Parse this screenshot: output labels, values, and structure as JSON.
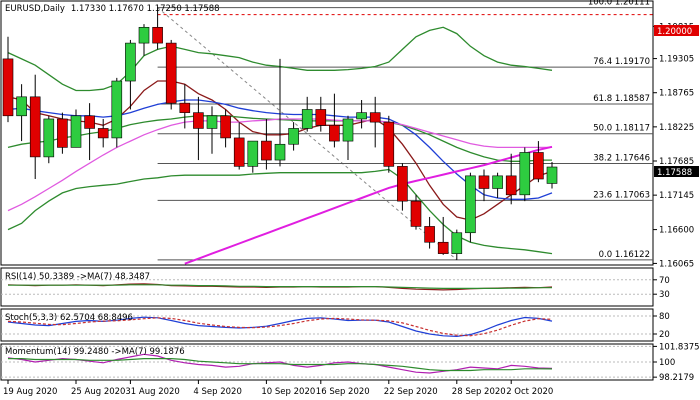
{
  "chart_data": [
    {
      "type": "candlestick",
      "title": "EURUSD,Daily",
      "ohlc_text": "1.17330 1.17670 1.17250 1.17588",
      "ylim": [
        1.1604,
        1.202
      ],
      "x_ticks": [
        "19 Aug 2020",
        "25 Aug 2020",
        "31 Aug 2020",
        "4 Sep 2020",
        "10 Sep 2020",
        "16 Sep 2020",
        "22 Sep 2020",
        "28 Sep 2020",
        "2 Oct 2020"
      ],
      "y_ticks": [
        "1.19815",
        "1.19305",
        "1.18765",
        "1.18225",
        "1.17685",
        "1.17145",
        "1.16600",
        "1.16065"
      ],
      "levels": [
        {
          "label": "1.20000",
          "value": 1.2,
          "style": "red-dashed",
          "tag": true
        },
        {
          "label": "100.0 1.20111",
          "value": 1.20111,
          "style": "fib"
        },
        {
          "label": "76.4 1.19170",
          "value": 1.1917,
          "style": "fib"
        },
        {
          "label": "61.8 1.18587",
          "value": 1.18587,
          "style": "fib"
        },
        {
          "label": "50.0 1.18117",
          "value": 1.18117,
          "style": "fib"
        },
        {
          "label": "38.2 1.17646",
          "value": 1.17646,
          "style": "fib"
        },
        {
          "label": "23.6 1.17063",
          "value": 1.17063,
          "style": "fib"
        },
        {
          "label": "0.0 1.16122",
          "value": 1.16122,
          "style": "fib"
        }
      ],
      "current_price": "1.17588",
      "candles": [
        {
          "o": 1.193,
          "h": 1.1965,
          "l": 1.183,
          "c": 1.184
        },
        {
          "o": 1.184,
          "h": 1.189,
          "l": 1.18,
          "c": 1.187
        },
        {
          "o": 1.187,
          "h": 1.1905,
          "l": 1.174,
          "c": 1.1775
        },
        {
          "o": 1.1775,
          "h": 1.184,
          "l": 1.1765,
          "c": 1.1835
        },
        {
          "o": 1.1835,
          "h": 1.1845,
          "l": 1.178,
          "c": 1.179
        },
        {
          "o": 1.179,
          "h": 1.185,
          "l": 1.179,
          "c": 1.184
        },
        {
          "o": 1.184,
          "h": 1.186,
          "l": 1.177,
          "c": 1.182
        },
        {
          "o": 1.182,
          "h": 1.1835,
          "l": 1.179,
          "c": 1.1805
        },
        {
          "o": 1.1805,
          "h": 1.19,
          "l": 1.179,
          "c": 1.1895
        },
        {
          "o": 1.1895,
          "h": 1.196,
          "l": 1.185,
          "c": 1.1955
        },
        {
          "o": 1.1955,
          "h": 1.1985,
          "l": 1.1935,
          "c": 1.198
        },
        {
          "o": 1.198,
          "h": 1.2012,
          "l": 1.1945,
          "c": 1.1955
        },
        {
          "o": 1.1955,
          "h": 1.196,
          "l": 1.185,
          "c": 1.186
        },
        {
          "o": 1.186,
          "h": 1.189,
          "l": 1.182,
          "c": 1.1845
        },
        {
          "o": 1.1845,
          "h": 1.187,
          "l": 1.177,
          "c": 1.182
        },
        {
          "o": 1.182,
          "h": 1.1855,
          "l": 1.178,
          "c": 1.184
        },
        {
          "o": 1.184,
          "h": 1.185,
          "l": 1.179,
          "c": 1.1805
        },
        {
          "o": 1.1805,
          "h": 1.183,
          "l": 1.1755,
          "c": 1.176
        },
        {
          "o": 1.176,
          "h": 1.18,
          "l": 1.175,
          "c": 1.18
        },
        {
          "o": 1.18,
          "h": 1.1835,
          "l": 1.1755,
          "c": 1.177
        },
        {
          "o": 1.177,
          "h": 1.193,
          "l": 1.176,
          "c": 1.1795
        },
        {
          "o": 1.1795,
          "h": 1.183,
          "l": 1.1785,
          "c": 1.182
        },
        {
          "o": 1.182,
          "h": 1.187,
          "l": 1.1815,
          "c": 1.185
        },
        {
          "o": 1.185,
          "h": 1.187,
          "l": 1.1815,
          "c": 1.1825
        },
        {
          "o": 1.1825,
          "h": 1.1875,
          "l": 1.179,
          "c": 1.18
        },
        {
          "o": 1.18,
          "h": 1.184,
          "l": 1.177,
          "c": 1.1835
        },
        {
          "o": 1.1835,
          "h": 1.1865,
          "l": 1.182,
          "c": 1.1845
        },
        {
          "o": 1.1845,
          "h": 1.187,
          "l": 1.179,
          "c": 1.183
        },
        {
          "o": 1.183,
          "h": 1.184,
          "l": 1.175,
          "c": 1.176
        },
        {
          "o": 1.176,
          "h": 1.1765,
          "l": 1.169,
          "c": 1.1705
        },
        {
          "o": 1.1705,
          "h": 1.1715,
          "l": 1.166,
          "c": 1.1665
        },
        {
          "o": 1.1665,
          "h": 1.168,
          "l": 1.163,
          "c": 1.164
        },
        {
          "o": 1.164,
          "h": 1.168,
          "l": 1.162,
          "c": 1.1622
        },
        {
          "o": 1.1622,
          "h": 1.166,
          "l": 1.1612,
          "c": 1.1655
        },
        {
          "o": 1.1655,
          "h": 1.175,
          "l": 1.164,
          "c": 1.1745
        },
        {
          "o": 1.1745,
          "h": 1.1755,
          "l": 1.1705,
          "c": 1.1725
        },
        {
          "o": 1.1725,
          "h": 1.175,
          "l": 1.171,
          "c": 1.1745
        },
        {
          "o": 1.1745,
          "h": 1.178,
          "l": 1.17,
          "c": 1.1715
        },
        {
          "o": 1.1715,
          "h": 1.179,
          "l": 1.1705,
          "c": 1.1782
        },
        {
          "o": 1.1782,
          "h": 1.18,
          "l": 1.1735,
          "c": 1.174
        },
        {
          "o": 1.1733,
          "h": 1.1767,
          "l": 1.1725,
          "c": 1.1759
        }
      ],
      "series": [
        {
          "color": "#8b1a1a",
          "values": [
            1.187,
            1.1865,
            1.1845,
            1.184,
            1.1835,
            1.1832,
            1.183,
            1.1825,
            1.1835,
            1.1855,
            1.188,
            1.1895,
            1.1895,
            1.189,
            1.1875,
            1.1865,
            1.185,
            1.183,
            1.1815,
            1.181,
            1.181,
            1.1812,
            1.182,
            1.1825,
            1.1825,
            1.1825,
            1.183,
            1.1835,
            1.182,
            1.1795,
            1.1765,
            1.173,
            1.17,
            1.168,
            1.1675,
            1.1685,
            1.17,
            1.1715,
            1.173,
            1.1745,
            1.1752
          ]
        },
        {
          "color": "#1f3fd6",
          "values": [
            1.185,
            1.1852,
            1.1848,
            1.1845,
            1.1842,
            1.184,
            1.184,
            1.1838,
            1.184,
            1.1845,
            1.1852,
            1.1858,
            1.1862,
            1.1865,
            1.1865,
            1.1862,
            1.1858,
            1.1852,
            1.1848,
            1.1845,
            1.1843,
            1.1842,
            1.1842,
            1.1842,
            1.184,
            1.1838,
            1.1838,
            1.1838,
            1.1835,
            1.1825,
            1.181,
            1.179,
            1.1768,
            1.1748,
            1.173,
            1.1715,
            1.171,
            1.1708,
            1.1708,
            1.171,
            1.1718
          ]
        },
        {
          "color": "#2e8b2e",
          "values": [
            1.179,
            1.1795,
            1.1798,
            1.18,
            1.1805,
            1.1808,
            1.1812,
            1.1815,
            1.182,
            1.1826,
            1.183,
            1.1833,
            1.1835,
            1.1838,
            1.184,
            1.184,
            1.184,
            1.1838,
            1.1836,
            1.1835,
            1.1834,
            1.1833,
            1.1832,
            1.1832,
            1.1832,
            1.1832,
            1.1832,
            1.1832,
            1.183,
            1.1825,
            1.1818,
            1.181,
            1.18,
            1.179,
            1.1782,
            1.1775,
            1.177,
            1.1768,
            1.1768,
            1.177,
            1.177
          ]
        },
        {
          "color": "#e05ae0",
          "values": [
            1.169,
            1.17,
            1.1712,
            1.1725,
            1.1738,
            1.1752,
            1.1765,
            1.1778,
            1.179,
            1.18,
            1.181,
            1.1818,
            1.1825,
            1.183,
            1.1832,
            1.1832,
            1.183,
            1.183,
            1.1832,
            1.1833,
            1.1835,
            1.1835,
            1.1835,
            1.1835,
            1.1833,
            1.1832,
            1.1832,
            1.1832,
            1.183,
            1.1826,
            1.182,
            1.1814,
            1.1808,
            1.1802,
            1.1796,
            1.1792,
            1.179,
            1.179,
            1.179,
            1.179,
            1.179
          ]
        },
        {
          "color": "#e01ee0",
          "values": [
            null,
            null,
            null,
            null,
            null,
            null,
            null,
            null,
            null,
            null,
            null,
            null,
            null,
            1.1606,
            1.1614,
            1.1622,
            1.163,
            1.1638,
            1.1646,
            1.1654,
            1.1662,
            1.167,
            1.1678,
            1.1686,
            1.1694,
            1.1702,
            1.171,
            1.1718,
            1.1726,
            1.1732,
            1.1737,
            1.1742,
            1.1747,
            1.1752,
            1.1757,
            1.1762,
            1.1768,
            1.1774,
            1.178,
            1.1786,
            1.1791
          ]
        },
        {
          "color": "#2e8b2e",
          "values": [
            1.194,
            1.193,
            1.192,
            1.1905,
            1.189,
            1.188,
            1.188,
            1.1882,
            1.189,
            1.191,
            1.1935,
            1.1945,
            1.195,
            1.1945,
            1.194,
            1.1938,
            1.1935,
            1.1932,
            1.1925,
            1.192,
            1.1918,
            1.1915,
            1.1912,
            1.1912,
            1.1912,
            1.1913,
            1.1915,
            1.1918,
            1.1925,
            1.1945,
            1.1965,
            1.1975,
            1.198,
            1.197,
            1.195,
            1.1935,
            1.1925,
            1.192,
            1.1918,
            1.1915,
            1.1912
          ]
        },
        {
          "color": "#2e8b2e",
          "values": [
            1.166,
            1.167,
            1.169,
            1.1705,
            1.1718,
            1.1725,
            1.1728,
            1.173,
            1.1732,
            1.1736,
            1.174,
            1.1742,
            1.1745,
            1.1746,
            1.1746,
            1.1746,
            1.1746,
            1.1746,
            1.1748,
            1.1749,
            1.175,
            1.175,
            1.175,
            1.175,
            1.175,
            1.175,
            1.175,
            1.1752,
            1.1755,
            1.174,
            1.1715,
            1.169,
            1.1668,
            1.165,
            1.164,
            1.1635,
            1.1632,
            1.163,
            1.1628,
            1.1625,
            1.1622
          ]
        }
      ]
    },
    {
      "type": "line",
      "title": "RSI(14) 50.3389 ->MA(7) 48.3487",
      "y_ticks": [
        "70",
        "30"
      ],
      "series": [
        {
          "color": "#8b1a1a",
          "values": [
            56,
            55,
            54,
            55,
            55,
            56,
            55,
            54,
            56,
            58,
            59,
            57,
            54,
            53,
            52,
            52,
            51,
            50,
            50,
            49,
            50,
            50,
            51,
            50,
            50,
            50,
            51,
            51,
            49,
            46,
            44,
            43,
            42,
            43,
            45,
            46,
            47,
            48,
            49,
            48,
            50
          ]
        },
        {
          "color": "#2e8b2e",
          "values": [
            55,
            55,
            55,
            55,
            55,
            55,
            55,
            55,
            55,
            56,
            56,
            56,
            55,
            55,
            54,
            54,
            53,
            52,
            52,
            51,
            51,
            51,
            51,
            51,
            51,
            51,
            51,
            51,
            50,
            49,
            48,
            47,
            46,
            46,
            46,
            46,
            46,
            47,
            47,
            48,
            48
          ]
        }
      ]
    },
    {
      "type": "line",
      "title": "Stoch(5,3,3) 62.5704 68.8496",
      "y_ticks": [
        "80",
        "20"
      ],
      "series": [
        {
          "color": "#1f3fd6",
          "values": [
            60,
            55,
            50,
            48,
            55,
            62,
            65,
            62,
            66,
            72,
            76,
            74,
            65,
            55,
            48,
            45,
            42,
            40,
            42,
            46,
            55,
            65,
            72,
            74,
            70,
            65,
            66,
            66,
            60,
            45,
            30,
            20,
            14,
            12,
            18,
            32,
            50,
            65,
            75,
            72,
            63
          ]
        },
        {
          "color": "#c83030",
          "values": [
            62,
            60,
            56,
            52,
            51,
            55,
            60,
            63,
            64,
            67,
            71,
            74,
            72,
            65,
            56,
            50,
            45,
            42,
            41,
            43,
            48,
            55,
            64,
            70,
            72,
            70,
            67,
            66,
            64,
            57,
            45,
            32,
            22,
            16,
            14,
            21,
            33,
            49,
            63,
            71,
            69
          ]
        }
      ]
    },
    {
      "type": "line",
      "title": "Momentum(14) 99.2480 ->MA(7) 99.1876",
      "y_ticks": [
        "101.8375",
        "100",
        "98.2179"
      ],
      "series": [
        {
          "color": "#b01eb0",
          "values": [
            100.5,
            100.3,
            100.0,
            100.2,
            100.4,
            100.3,
            100.1,
            99.9,
            100.3,
            100.6,
            100.9,
            100.7,
            100.2,
            99.9,
            99.7,
            99.6,
            99.4,
            99.5,
            99.8,
            99.9,
            100.0,
            99.6,
            99.4,
            99.6,
            99.9,
            100.0,
            99.8,
            99.7,
            99.4,
            99.1,
            98.8,
            98.7,
            98.9,
            99.1,
            99.4,
            99.3,
            99.2,
            99.6,
            99.5,
            99.3,
            99.25
          ]
        },
        {
          "color": "#2e8b2e",
          "values": [
            100.4,
            100.4,
            100.3,
            100.3,
            100.3,
            100.3,
            100.2,
            100.2,
            100.2,
            100.3,
            100.4,
            100.4,
            100.4,
            100.3,
            100.1,
            100.0,
            99.9,
            99.8,
            99.8,
            99.8,
            99.8,
            99.7,
            99.7,
            99.7,
            99.7,
            99.8,
            99.8,
            99.7,
            99.6,
            99.5,
            99.3,
            99.1,
            99.0,
            99.0,
            99.0,
            99.1,
            99.1,
            99.1,
            99.2,
            99.2,
            99.19
          ]
        }
      ]
    }
  ]
}
